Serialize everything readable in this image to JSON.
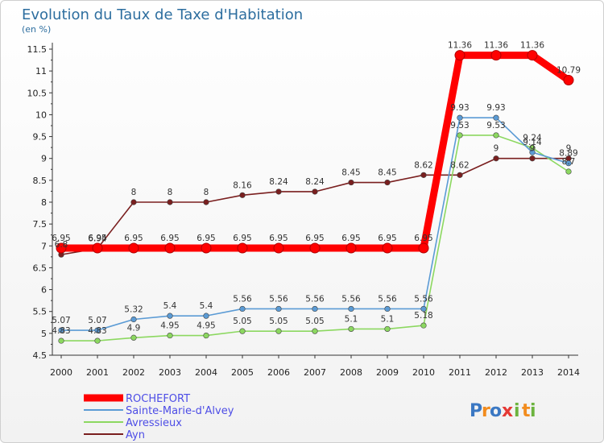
{
  "chart_data": {
    "type": "line",
    "title": "Evolution du Taux de Taxe d'Habitation",
    "subtitle": "(en %)",
    "x": [
      "2000",
      "2001",
      "2002",
      "2003",
      "2004",
      "2005",
      "2006",
      "2007",
      "2008",
      "2009",
      "2010",
      "2011",
      "2012",
      "2013",
      "2014"
    ],
    "ylim": [
      4.5,
      11.5
    ],
    "yticks": [
      "4.5",
      "5",
      "5.5",
      "6",
      "6.5",
      "7",
      "7.5",
      "8",
      "8.5",
      "9",
      "9.5",
      "10",
      "10.5",
      "11",
      "11.5"
    ],
    "grid": false,
    "legend_position": "bottom-left",
    "series": [
      {
        "name": "ROCHEFORT",
        "color": "#ff0000",
        "values": [
          6.95,
          6.95,
          6.95,
          6.95,
          6.95,
          6.95,
          6.95,
          6.95,
          6.95,
          6.95,
          6.95,
          11.36,
          11.36,
          11.36,
          10.79
        ],
        "labels": [
          "6.95",
          "6.95",
          "6.95",
          "6.95",
          "6.95",
          "6.95",
          "6.95",
          "6.95",
          "6.95",
          "6.95",
          "6.95",
          "11.36",
          "11.36",
          "11.36",
          "10.79"
        ]
      },
      {
        "name": "Sainte-Marie-d'Alvey",
        "color": "#5b9bd5",
        "values": [
          5.07,
          5.07,
          5.32,
          5.4,
          5.4,
          5.56,
          5.56,
          5.56,
          5.56,
          5.56,
          5.56,
          9.93,
          9.93,
          9.14,
          8.89
        ],
        "labels": [
          "5.07",
          "5.07",
          "5.32",
          "5.4",
          "5.4",
          "5.56",
          "5.56",
          "5.56",
          "5.56",
          "5.56",
          "5.56",
          "9.93",
          "9.93",
          "9.14",
          "8.89"
        ]
      },
      {
        "name": "Avressieux",
        "color": "#8cd860",
        "values": [
          4.83,
          4.83,
          4.9,
          4.95,
          4.95,
          5.05,
          5.05,
          5.05,
          5.1,
          5.1,
          5.18,
          9.53,
          9.53,
          9.24,
          8.7
        ],
        "labels": [
          "4.83",
          "4.83",
          "4.9",
          "4.95",
          "4.95",
          "5.05",
          "5.05",
          "5.05",
          "5.1",
          "5.1",
          "5.18",
          "9.53",
          "9.53",
          "9.24",
          "8.7"
        ]
      },
      {
        "name": "Ayn",
        "color": "#7a1f1f",
        "values": [
          6.8,
          6.94,
          8,
          8,
          8,
          8.16,
          8.24,
          8.24,
          8.45,
          8.45,
          8.62,
          8.62,
          9,
          9,
          9
        ],
        "labels": [
          "6.8",
          "6.94",
          "8",
          "8",
          "8",
          "8.16",
          "8.24",
          "8.24",
          "8.45",
          "8.45",
          "8.62",
          "8.62",
          "9",
          "9",
          "9"
        ]
      }
    ]
  },
  "legend": [
    {
      "label": "ROCHEFORT",
      "color": "#ff0000"
    },
    {
      "label": "Sainte-Marie-d'Alvey",
      "color": "#5b9bd5"
    },
    {
      "label": "Avressieux",
      "color": "#8cd860"
    },
    {
      "label": "Ayn",
      "color": "#7a1f1f"
    }
  ],
  "logo": {
    "letters": [
      "P",
      "r",
      "o",
      "x",
      "i",
      "t",
      "i"
    ],
    "colors": [
      "#3b78c3",
      "#f28c1e",
      "#3b78c3",
      "#e53935",
      "#6cb33f",
      "#f28c1e",
      "#6cb33f"
    ]
  }
}
